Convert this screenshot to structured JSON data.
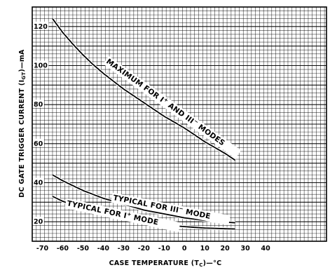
{
  "chart_data": {
    "type": "line",
    "title": "",
    "xlabel": "CASE TEMPERATURE (T",
    "xlabel_sub": "C",
    "xlabel_suffix": ")—°C",
    "ylabel": "DC GATE TRIGGER CURRENT (I",
    "ylabel_sub": "GT",
    "ylabel_suffix": ")—mA",
    "xlim": [
      -75,
      70
    ],
    "ylim": [
      10,
      130
    ],
    "x_ticks": [
      {
        "value": -70,
        "label": "-70"
      },
      {
        "value": -60,
        "label": "-60"
      },
      {
        "value": -50,
        "label": "-50"
      },
      {
        "value": -40,
        "label": "-40"
      },
      {
        "value": -30,
        "label": "-30"
      },
      {
        "value": -20,
        "label": "-20"
      },
      {
        "value": -10,
        "label": "-10"
      },
      {
        "value": 0,
        "label": "0"
      },
      {
        "value": 10,
        "label": "10"
      },
      {
        "value": 20,
        "label": "20"
      },
      {
        "value": 30,
        "label": "30"
      },
      {
        "value": 40,
        "label": "40"
      }
    ],
    "y_ticks": [
      {
        "value": 20,
        "label": "20"
      },
      {
        "value": 40,
        "label": "40"
      },
      {
        "value": 60,
        "label": "60"
      },
      {
        "value": 80,
        "label": "80"
      },
      {
        "value": 100,
        "label": "100"
      },
      {
        "value": 120,
        "label": "120"
      }
    ],
    "grid": true,
    "series": [
      {
        "name": "MAXIMUM FOR I+ AND III- MODES",
        "x": [
          -65,
          -60,
          -55,
          -50,
          -45,
          -40,
          -35,
          -30,
          -25,
          -20,
          -15,
          -10,
          -5,
          0,
          5,
          10,
          15,
          20,
          25
        ],
        "y": [
          124,
          117,
          111,
          105.5,
          100.5,
          96,
          92,
          88,
          84.5,
          81,
          77.5,
          74,
          71,
          68,
          64.5,
          61,
          58,
          55,
          51.5
        ]
      },
      {
        "name": "TYPICAL FOR III- MODE",
        "x": [
          -65,
          -60,
          -55,
          -50,
          -45,
          -40,
          -35,
          -30,
          -25,
          -20,
          -15,
          -10,
          -5,
          0,
          5,
          10,
          15,
          20,
          25
        ],
        "y": [
          44,
          41,
          38.5,
          36,
          34,
          32,
          30.5,
          29,
          27.5,
          26,
          25,
          24,
          23,
          22,
          21.3,
          20.7,
          20.2,
          19.8,
          19.5
        ]
      },
      {
        "name": "TYPICAL FOR I+ MODE",
        "x": [
          -65,
          -60,
          -55,
          -50,
          -45,
          -40,
          -35,
          -30,
          -25,
          -20,
          -15,
          -10,
          -5,
          0,
          5,
          10,
          15,
          20,
          25
        ],
        "y": [
          33,
          30.5,
          28.5,
          26.5,
          25,
          23.5,
          22.3,
          21.3,
          20.4,
          19.6,
          19,
          18.4,
          17.9,
          17.5,
          17.1,
          16.8,
          16.6,
          16.4,
          16.3
        ]
      }
    ],
    "curve_labels": [
      {
        "text": "MAXIMUM FOR I",
        "sup1": "+",
        "mid": " AND III",
        "sup2": "−",
        "end": " MODES"
      },
      {
        "text": "TYPICAL FOR III",
        "sup1": "−",
        "mid": " MODE",
        "sup2": "",
        "end": ""
      },
      {
        "text": "TYPICAL FOR I",
        "sup1": "+",
        "mid": " MODE",
        "sup2": "",
        "end": ""
      }
    ]
  }
}
